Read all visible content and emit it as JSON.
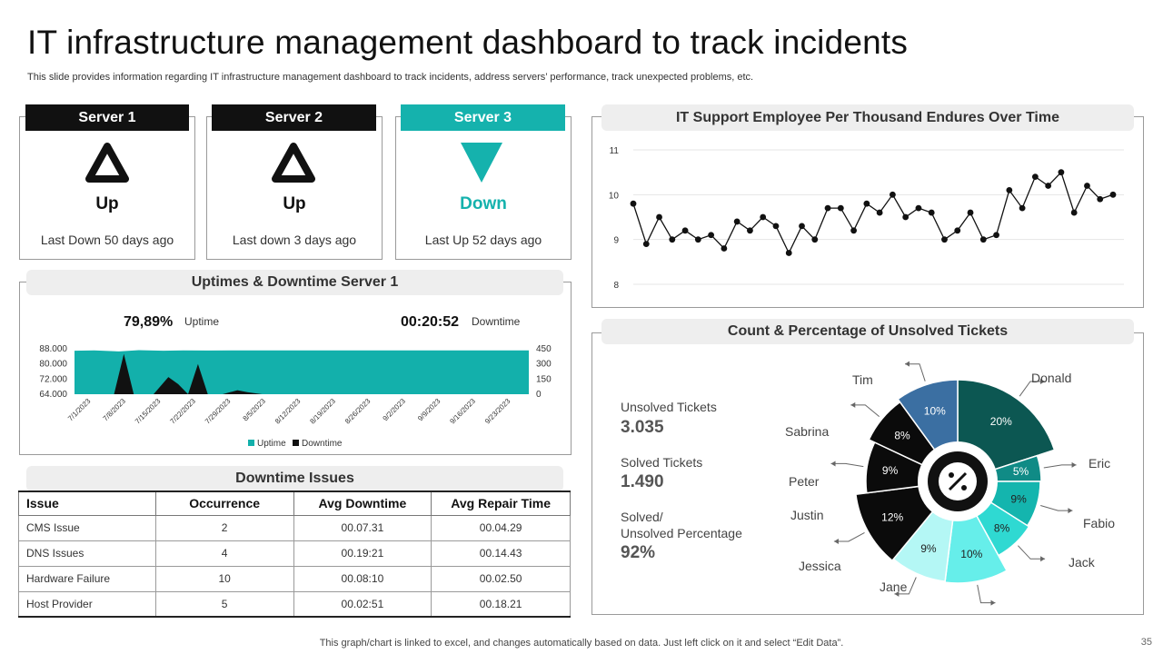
{
  "header": {
    "title": "IT infrastructure management dashboard to track incidents",
    "subtitle": "This slide provides information regarding IT infrastructure management dashboard to track incidents, address servers’ performance, track unexpected problems, etc."
  },
  "servers": [
    {
      "name": "Server 1",
      "status": "Up",
      "note": "Last Down 50 days ago",
      "icon": "triangle-up-icon",
      "head_color": "#111111",
      "status_color": "#111111"
    },
    {
      "name": "Server 2",
      "status": "Up",
      "note": "Last down 3 days ago",
      "icon": "triangle-up-icon",
      "head_color": "#111111",
      "status_color": "#111111"
    },
    {
      "name": "Server 3",
      "status": "Down",
      "note": "Last Up 52 days ago",
      "icon": "triangle-down-icon",
      "head_color": "#15b2ad",
      "status_color": "#15b2ad"
    }
  ],
  "uptime_panel": {
    "title": "Uptimes & Downtime Server 1",
    "uptime_value": "79,89%",
    "uptime_label": "Uptime",
    "downtime_value": "00:20:52",
    "downtime_label": "Downtime"
  },
  "issues_panel": {
    "title": "Downtime Issues",
    "columns": [
      "Issue",
      "Occurrence",
      "Avg Downtime",
      "Avg Repair Time"
    ],
    "rows": [
      [
        "CMS Issue",
        "2",
        "00.07.31",
        "00.04.29"
      ],
      [
        "DNS Issues",
        "4",
        "00.19:21",
        "00.14.43"
      ],
      [
        "Hardware  Failure",
        "10",
        "00.08:10",
        "00.02.50"
      ],
      [
        "Host Provider",
        "5",
        "00.02:51",
        "00.18.21"
      ]
    ]
  },
  "line_panel": {
    "title": "IT Support Employee Per Thousand Endures Over Time"
  },
  "tickets_panel": {
    "title": "Count  & Percentage of Unsolved Tickets",
    "stats": [
      {
        "label": "Unsolved Tickets",
        "value": "3.035"
      },
      {
        "label": "Solved Tickets",
        "value": "1.490"
      },
      {
        "label": "Solved/",
        "label2": "Unsolved Percentage",
        "value": "92%"
      }
    ],
    "center_icon": "percent-icon"
  },
  "chart_data": [
    {
      "type": "area",
      "x_ticks": [
        "7/1/2023",
        "7/8/2023",
        "7/15/2023",
        "7/22/2023",
        "7/29/2023",
        "8/5/2023",
        "8/12/2023",
        "8/19/2023",
        "8/26/2023",
        "9/2/2023",
        "9/9/2023",
        "9/16/2023",
        "9/23/2023"
      ],
      "y_ticks_left": [
        "88.000",
        "80.000",
        "72.000",
        "64.000"
      ],
      "y_ticks_right": [
        "450",
        "300",
        "150",
        "0"
      ],
      "ylim_left": [
        64000,
        88000
      ],
      "ylim_right": [
        0,
        450
      ],
      "series": [
        {
          "name": "Uptime",
          "axis": "left",
          "color": "#13b0ab",
          "x": [
            0,
            4,
            9,
            13,
            18,
            22,
            27,
            32,
            36,
            50,
            64,
            78,
            92
          ],
          "values": [
            87000,
            87200,
            86600,
            87300,
            87000,
            87200,
            87100,
            87200,
            87200,
            87200,
            87200,
            87200,
            87200
          ]
        },
        {
          "name": "Downtime",
          "axis": "right",
          "color": "#111111",
          "x": [
            0,
            8,
            10,
            12,
            16,
            19,
            21,
            23,
            25,
            27,
            30,
            33,
            35,
            38,
            45,
            92
          ],
          "values": [
            0,
            0,
            400,
            0,
            0,
            170,
            100,
            0,
            300,
            0,
            0,
            40,
            20,
            0,
            0,
            0
          ]
        }
      ],
      "legend": "bottom"
    },
    {
      "type": "line",
      "y_ticks": [
        "11",
        "10",
        "9",
        "8"
      ],
      "ylim": [
        8,
        11
      ],
      "grid": true,
      "series": [
        {
          "color": "#111111",
          "values": [
            9.8,
            8.9,
            9.5,
            9.0,
            9.2,
            9.0,
            9.1,
            8.8,
            9.4,
            9.2,
            9.5,
            9.3,
            8.7,
            9.3,
            9.0,
            9.7,
            9.7,
            9.2,
            9.8,
            9.6,
            10.0,
            9.5,
            9.7,
            9.6,
            9.0,
            9.2,
            9.6,
            9.0,
            9.1,
            10.1,
            9.7,
            10.4,
            10.2,
            10.5,
            9.6,
            10.2,
            9.9,
            10.0
          ]
        }
      ]
    },
    {
      "type": "pie",
      "slices": [
        {
          "label": "Donald",
          "value": 20,
          "text": "20%",
          "color": "#0c5752"
        },
        {
          "label": "Eric",
          "value": 5,
          "text": "5%",
          "color": "#108b86"
        },
        {
          "label": "Fabio",
          "value": 9,
          "text": "9%",
          "color": "#14b5ae"
        },
        {
          "label": "Jack",
          "value": 8,
          "text": "8%",
          "color": "#2fd9d2"
        },
        {
          "label": "Jane",
          "value": 10,
          "text": "10%",
          "color": "#66eeea"
        },
        {
          "label": "Jessica",
          "value": 9,
          "text": "9%",
          "color": "#b4f7f5"
        },
        {
          "label": "Justin",
          "value": 12,
          "text": "12%",
          "color": "#0b0b0b"
        },
        {
          "label": "Peter",
          "value": 9,
          "text": "9%",
          "color": "#0b0b0b"
        },
        {
          "label": "Sabrina",
          "value": 8,
          "text": "8%",
          "color": "#0b0b0b"
        },
        {
          "label": "Tim",
          "value": 10,
          "text": "10%",
          "color": "#3b6fa2"
        }
      ]
    }
  ],
  "footer": {
    "note": "This graph/chart is linked to excel,  and changes automatically based on data. Just left click on it and select “Edit Data”.",
    "page": "35"
  }
}
